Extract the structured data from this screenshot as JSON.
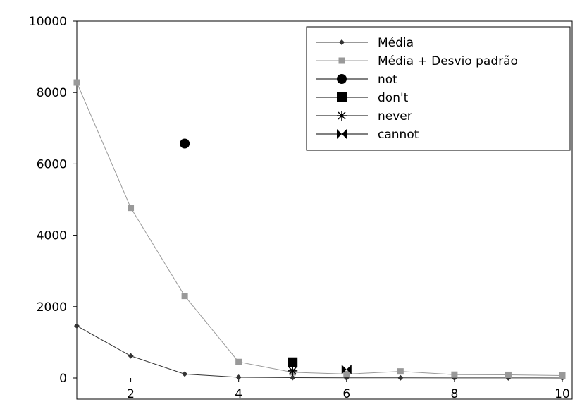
{
  "chart_data": {
    "type": "line",
    "title": "",
    "xlabel": "",
    "ylabel": "",
    "xlim": [
      1,
      10
    ],
    "ylim": [
      0,
      10000
    ],
    "xticks": [
      2,
      4,
      6,
      8,
      10
    ],
    "yticks": [
      0,
      2000,
      4000,
      6000,
      8000,
      10000
    ],
    "grid": false,
    "legend_position": "top-right",
    "series": [
      {
        "name": "Média",
        "kind": "line",
        "marker": "diamond",
        "color": "#333333",
        "x": [
          1,
          2,
          3,
          4,
          5,
          6,
          7,
          8,
          9,
          10
        ],
        "y": [
          1460,
          620,
          110,
          20,
          10,
          5,
          5,
          2,
          2,
          1
        ]
      },
      {
        "name": "Média + Desvio padrão",
        "kind": "line",
        "marker": "square",
        "color": "#999999",
        "x": [
          1,
          2,
          3,
          4,
          5,
          6,
          7,
          8,
          9,
          10
        ],
        "y": [
          8280,
          4770,
          2300,
          450,
          160,
          110,
          185,
          95,
          90,
          70
        ]
      },
      {
        "name": "not",
        "kind": "point",
        "marker": "circle",
        "color": "#000000",
        "x": [
          3
        ],
        "y": [
          6570
        ]
      },
      {
        "name": "don't",
        "kind": "point",
        "marker": "square",
        "color": "#000000",
        "x": [
          5
        ],
        "y": [
          440
        ]
      },
      {
        "name": "never",
        "kind": "point",
        "marker": "asterisk",
        "color": "#000000",
        "x": [
          5
        ],
        "y": [
          200
        ]
      },
      {
        "name": "cannot",
        "kind": "point",
        "marker": "bowtie",
        "color": "#000000",
        "x": [
          6
        ],
        "y": [
          240
        ]
      }
    ]
  }
}
